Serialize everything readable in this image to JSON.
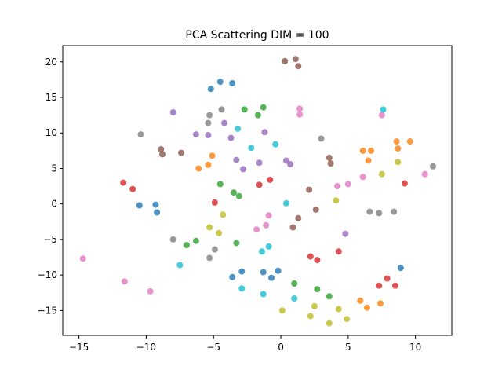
{
  "chart_data": {
    "type": "scatter",
    "title": "PCA Scattering DIM = 100",
    "xlabel": "",
    "ylabel": "",
    "xlim": [
      -16.2,
      12.7
    ],
    "ylim": [
      -18.5,
      22.3
    ],
    "x_ticks": [
      -15,
      -10,
      -5,
      0,
      5,
      10
    ],
    "y_ticks": [
      -15,
      -10,
      -5,
      0,
      5,
      10,
      15,
      20
    ],
    "grid": false,
    "legend": "none",
    "series": [
      {
        "color": "#1f77b4",
        "points": [
          [
            -4.5,
            17.2
          ],
          [
            -5.2,
            16.2
          ],
          [
            -3.6,
            17.0
          ],
          [
            -9.3,
            -0.1
          ],
          [
            -10.5,
            -0.2
          ],
          [
            -9.2,
            -1.2
          ],
          [
            -3.6,
            -10.3
          ],
          [
            -2.9,
            -9.5
          ],
          [
            -0.7,
            -10.4
          ],
          [
            -0.2,
            -9.4
          ],
          [
            -1.3,
            -9.6
          ],
          [
            8.9,
            -9.0
          ]
        ]
      },
      {
        "color": "#ff7f0e",
        "points": [
          [
            9.6,
            8.8
          ],
          [
            8.6,
            8.8
          ],
          [
            8.7,
            7.8
          ],
          [
            6.7,
            7.5
          ],
          [
            6.1,
            7.5
          ],
          [
            6.5,
            6.1
          ],
          [
            -5.1,
            6.8
          ],
          [
            -5.4,
            5.5
          ],
          [
            -6.1,
            5.0
          ],
          [
            5.9,
            -13.6
          ],
          [
            6.4,
            -14.6
          ],
          [
            7.4,
            -14.0
          ]
        ]
      },
      {
        "color": "#2ca02c",
        "points": [
          [
            -2.7,
            13.3
          ],
          [
            -1.3,
            13.6
          ],
          [
            -1.7,
            12.5
          ],
          [
            -4.5,
            2.8
          ],
          [
            -3.5,
            1.6
          ],
          [
            -3.1,
            1.1
          ],
          [
            -3.3,
            -5.5
          ],
          [
            -7.0,
            -5.8
          ],
          [
            -6.3,
            -5.2
          ],
          [
            1.0,
            -11.2
          ],
          [
            2.7,
            -12.0
          ],
          [
            3.6,
            -13.0
          ]
        ]
      },
      {
        "color": "#d62728",
        "points": [
          [
            -11.7,
            3.0
          ],
          [
            -11.0,
            2.1
          ],
          [
            -0.8,
            3.4
          ],
          [
            -1.6,
            2.7
          ],
          [
            -4.9,
            0.2
          ],
          [
            9.2,
            2.9
          ],
          [
            4.3,
            -6.7
          ],
          [
            2.2,
            -7.4
          ],
          [
            2.7,
            -7.9
          ],
          [
            7.9,
            -10.5
          ],
          [
            7.3,
            -11.5
          ],
          [
            8.5,
            -11.5
          ]
        ]
      },
      {
        "color": "#9467bd",
        "points": [
          [
            -8.0,
            12.9
          ],
          [
            -6.3,
            9.8
          ],
          [
            -5.4,
            9.7
          ],
          [
            -4.2,
            11.4
          ],
          [
            -3.7,
            9.3
          ],
          [
            -1.2,
            10.1
          ],
          [
            -3.3,
            6.2
          ],
          [
            -2.8,
            4.9
          ],
          [
            -1.6,
            5.8
          ],
          [
            0.4,
            6.1
          ],
          [
            0.7,
            5.6
          ],
          [
            4.8,
            -4.2
          ]
        ]
      },
      {
        "color": "#8c564b",
        "points": [
          [
            0.3,
            20.1
          ],
          [
            1.1,
            20.4
          ],
          [
            1.3,
            19.4
          ],
          [
            -8.9,
            7.7
          ],
          [
            -8.8,
            7.0
          ],
          [
            -7.4,
            7.2
          ],
          [
            3.6,
            6.5
          ],
          [
            3.7,
            5.7
          ],
          [
            2.1,
            2.0
          ],
          [
            2.6,
            -0.8
          ],
          [
            1.3,
            -2.0
          ],
          [
            0.9,
            -3.3
          ]
        ]
      },
      {
        "color": "#e377c2",
        "points": [
          [
            1.4,
            13.4
          ],
          [
            1.4,
            12.6
          ],
          [
            7.5,
            12.5
          ],
          [
            10.7,
            4.2
          ],
          [
            6.1,
            3.8
          ],
          [
            4.2,
            2.5
          ],
          [
            5.0,
            2.8
          ],
          [
            -0.9,
            -1.6
          ],
          [
            -1.1,
            -3.0
          ],
          [
            -1.8,
            -3.6
          ],
          [
            -14.7,
            -7.7
          ],
          [
            -11.6,
            -10.9
          ],
          [
            -9.7,
            -12.3
          ]
        ]
      },
      {
        "color": "#7f7f7f",
        "points": [
          [
            -4.4,
            13.3
          ],
          [
            -5.3,
            12.5
          ],
          [
            -5.4,
            11.4
          ],
          [
            -10.4,
            9.8
          ],
          [
            3.0,
            9.2
          ],
          [
            11.3,
            5.3
          ],
          [
            6.6,
            -1.1
          ],
          [
            7.3,
            -1.3
          ],
          [
            8.4,
            -1.1
          ],
          [
            -8.0,
            -5.0
          ],
          [
            -4.9,
            -6.4
          ],
          [
            -5.3,
            -7.6
          ]
        ]
      },
      {
        "color": "#bcbd22",
        "points": [
          [
            7.5,
            4.2
          ],
          [
            8.7,
            5.9
          ],
          [
            4.1,
            0.5
          ],
          [
            -4.3,
            -1.5
          ],
          [
            -5.3,
            -3.3
          ],
          [
            -4.6,
            -4.1
          ],
          [
            0.1,
            -15.0
          ],
          [
            2.5,
            -14.4
          ],
          [
            2.2,
            -15.8
          ],
          [
            4.3,
            -14.8
          ],
          [
            3.6,
            -16.8
          ],
          [
            4.9,
            -16.2
          ]
        ]
      },
      {
        "color": "#17becf",
        "points": [
          [
            7.6,
            13.3
          ],
          [
            -3.2,
            10.6
          ],
          [
            -2.2,
            7.9
          ],
          [
            -0.4,
            8.4
          ],
          [
            0.4,
            0.1
          ],
          [
            -1.4,
            -6.7
          ],
          [
            -0.9,
            -6.0
          ],
          [
            -7.5,
            -8.6
          ],
          [
            -2.9,
            -11.9
          ],
          [
            -1.3,
            -12.7
          ],
          [
            1.0,
            -13.3
          ]
        ]
      }
    ]
  }
}
